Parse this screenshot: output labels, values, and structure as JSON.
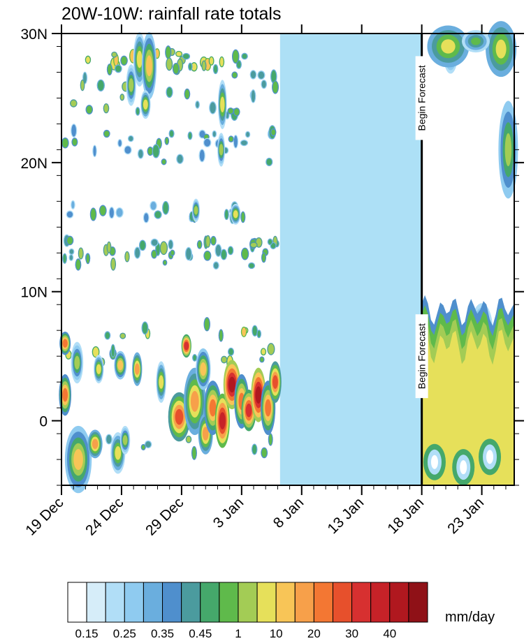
{
  "chart_data": {
    "type": "heatmap",
    "title": "20W-10W: rainfall rate totals",
    "xlabel": "",
    "ylabel": "",
    "x_axis": {
      "kind": "date",
      "start": "2019-12-19",
      "end": "2020-01-25.7",
      "tick_labels": [
        "19 Dec",
        "24 Dec",
        "29 Dec",
        "3 Jan",
        "8 Jan",
        "13 Jan",
        "18 Jan",
        "23 Jan"
      ],
      "tick_dates": [
        "2019-12-19",
        "2019-12-24",
        "2019-12-29",
        "2020-01-03",
        "2020-01-08",
        "2020-01-13",
        "2020-01-18",
        "2020-01-23"
      ]
    },
    "y_axis": {
      "kind": "latitude",
      "range": [
        -5,
        30
      ],
      "tick_labels": [
        "0",
        "10N",
        "20N",
        "30N"
      ],
      "tick_values": [
        0,
        10,
        20,
        30
      ]
    },
    "missing_data_period": {
      "start": "2020-01-06.2",
      "end": "2020-01-18",
      "color": "#ade0f6"
    },
    "forecast": {
      "start": "2020-01-18",
      "labels": [
        "Begin Forecast",
        "Begin Forecast"
      ],
      "label_lat": [
        25,
        5
      ]
    },
    "colorbar": {
      "units": "mm/day",
      "levels": [
        "0.15",
        "0.25",
        "0.35",
        "0.45",
        "1",
        "10",
        "20",
        "30",
        "40"
      ],
      "colors": [
        "#ffffff",
        "#d6edf9",
        "#b1def7",
        "#8fcbf0",
        "#6aaede",
        "#4f8fcd",
        "#4b9b9e",
        "#45a86b",
        "#5fba4b",
        "#a3cc55",
        "#e6e05a",
        "#f8c557",
        "#f7a04a",
        "#f37733",
        "#e7502c",
        "#d73030",
        "#c62228",
        "#b0181f",
        "#8f1117"
      ]
    },
    "rain_features": [
      {
        "t": "2019-12-19.3",
        "lat": 2.0,
        "rt": 0.4,
        "rl": 1.5,
        "lv": 13
      },
      {
        "t": "2019-12-19.3",
        "lat": 6.0,
        "rt": 0.35,
        "rl": 0.8,
        "lv": 13
      },
      {
        "t": "2019-12-20.3",
        "lat": 4.5,
        "rt": 0.4,
        "rl": 1.5,
        "lv": 9
      },
      {
        "t": "2019-12-20.4",
        "lat": -3.0,
        "rt": 1.0,
        "rl": 2.5,
        "lv": 11
      },
      {
        "t": "2019-12-21.8",
        "lat": -1.8,
        "rt": 0.5,
        "rl": 1.0,
        "lv": 12
      },
      {
        "t": "2019-12-22.1",
        "lat": 4.0,
        "rt": 0.3,
        "rl": 1.0,
        "lv": 10
      },
      {
        "t": "2019-12-23.7",
        "lat": -2.5,
        "rt": 0.5,
        "rl": 1.5,
        "lv": 10
      },
      {
        "t": "2019-12-23.9",
        "lat": 4.3,
        "rt": 0.4,
        "rl": 1.0,
        "lv": 11
      },
      {
        "t": "2019-12-24.3",
        "lat": -1.5,
        "rt": 0.3,
        "rl": 1.0,
        "lv": 9
      },
      {
        "t": "2019-12-25.3",
        "lat": 4.0,
        "rt": 0.3,
        "rl": 1.2,
        "lv": 12
      },
      {
        "t": "2019-12-27.3",
        "lat": 3.0,
        "rt": 0.3,
        "rl": 1.5,
        "lv": 10
      },
      {
        "t": "2019-12-28.8",
        "lat": 0.3,
        "rt": 0.8,
        "rl": 1.8,
        "lv": 14
      },
      {
        "t": "2019-12-29.4",
        "lat": 5.8,
        "rt": 0.3,
        "rl": 0.8,
        "lv": 15
      },
      {
        "t": "2019-12-30.1",
        "lat": 1.5,
        "rt": 0.8,
        "rl": 2.5,
        "lv": 12
      },
      {
        "t": "2019-12-30.8",
        "lat": 4.0,
        "rt": 0.5,
        "rl": 1.5,
        "lv": 11
      },
      {
        "t": "2019-12-31.0",
        "lat": -1.0,
        "rt": 0.5,
        "rl": 1.5,
        "lv": 12
      },
      {
        "t": "2019-12-31.6",
        "lat": 1.0,
        "rt": 0.6,
        "rl": 2.0,
        "lv": 13
      },
      {
        "t": "2020-01-01.4",
        "lat": 0.0,
        "rt": 0.5,
        "rl": 2.0,
        "lv": 16
      },
      {
        "t": "2020-01-02.2",
        "lat": 2.8,
        "rt": 0.6,
        "rl": 1.8,
        "lv": 17
      },
      {
        "t": "2020-01-03.0",
        "lat": 1.5,
        "rt": 0.5,
        "rl": 2.0,
        "lv": 13
      },
      {
        "t": "2020-01-03.6",
        "lat": 0.8,
        "rt": 0.5,
        "rl": 1.5,
        "lv": 15
      },
      {
        "t": "2020-01-04.4",
        "lat": 2.0,
        "rt": 0.5,
        "rl": 2.0,
        "lv": 17
      },
      {
        "t": "2020-01-05.2",
        "lat": 1.0,
        "rt": 0.5,
        "rl": 2.0,
        "lv": 13
      },
      {
        "t": "2020-01-05.8",
        "lat": 3.0,
        "rt": 0.4,
        "rl": 1.5,
        "lv": 14
      },
      {
        "t": "2019-12-25.5",
        "lat": 28.0,
        "rt": 0.4,
        "rl": 2.0,
        "lv": 10
      },
      {
        "t": "2019-12-26.3",
        "lat": 27.5,
        "rt": 0.5,
        "rl": 2.5,
        "lv": 11
      },
      {
        "t": "2019-12-24.8",
        "lat": 26.0,
        "rt": 0.3,
        "rl": 1.5,
        "lv": 9
      },
      {
        "t": "2019-12-26.0",
        "lat": 24.5,
        "rt": 0.3,
        "rl": 1.0,
        "lv": 10
      },
      {
        "t": "2020-01-01.4",
        "lat": 24.5,
        "rt": 0.25,
        "rl": 1.8,
        "lv": 10
      },
      {
        "t": "2020-01-01.3",
        "lat": 21.0,
        "rt": 0.2,
        "rl": 1.2,
        "lv": 9
      },
      {
        "t": "2020-01-02.5",
        "lat": 16.0,
        "rt": 0.3,
        "rl": 0.7,
        "lv": 10
      },
      {
        "t": "2019-12-30.2",
        "lat": 16.3,
        "rt": 0.2,
        "rl": 0.8,
        "lv": 9
      },
      {
        "t": "2020-01-19.2",
        "lat": 1.0,
        "rt": 1.2,
        "rl": 3.5,
        "lv": 11
      },
      {
        "t": "2020-01-21.0",
        "lat": 3.0,
        "rt": 1.5,
        "rl": 3.5,
        "lv": 11
      },
      {
        "t": "2020-01-22.5",
        "lat": 0.5,
        "rt": 1.2,
        "rl": 3.0,
        "lv": 10
      },
      {
        "t": "2020-01-24.2",
        "lat": 2.0,
        "rt": 1.2,
        "rl": 3.5,
        "lv": 10
      },
      {
        "t": "2020-01-20.0",
        "lat": 6.0,
        "rt": 0.6,
        "rl": 1.8,
        "lv": 10
      },
      {
        "t": "2020-01-23.0",
        "lat": 7.0,
        "rt": 0.8,
        "rl": 2.0,
        "lv": 9
      },
      {
        "t": "2020-01-19.8",
        "lat": 0.0,
        "rt": 0.3,
        "rl": 0.8,
        "lv": 12
      },
      {
        "t": "2020-01-20.4",
        "lat": 28.5,
        "rt": 0.5,
        "rl": 1.5,
        "lv": 9
      },
      {
        "t": "2020-01-24.8",
        "lat": 28.5,
        "rt": 0.8,
        "rl": 1.5,
        "lv": 10
      },
      {
        "t": "2020-01-25.2",
        "lat": 21.0,
        "rt": 0.4,
        "rl": 3.0,
        "lv": 9
      }
    ]
  }
}
